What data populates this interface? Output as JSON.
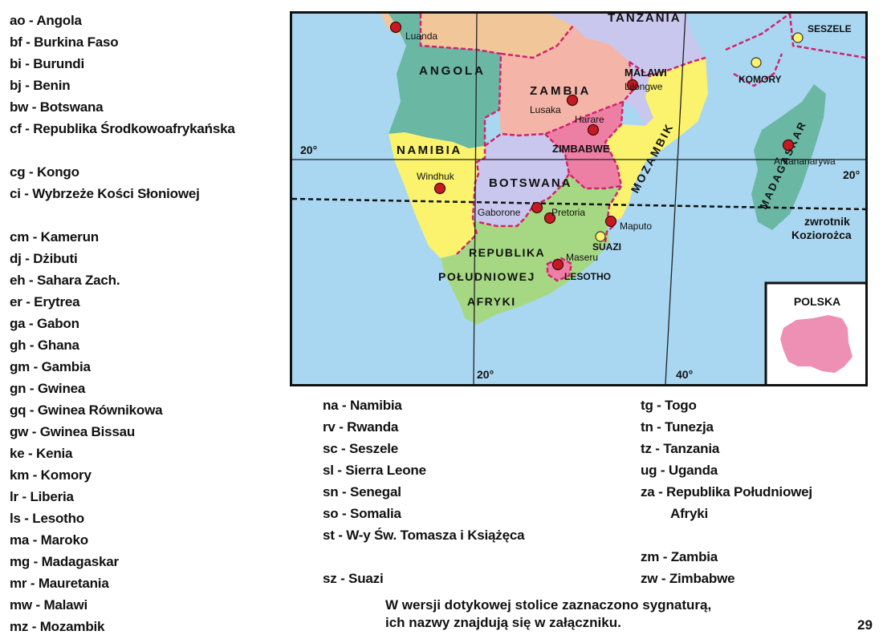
{
  "legend_left": [
    "ao - Angola",
    "bf - Burkina Faso",
    "bi - Burundi",
    "bj - Benin",
    "bw - Botswana",
    "cf - Republika Środkowoafrykańska",
    "",
    "cg - Kongo",
    "ci - Wybrzeże Kości Słoniowej",
    "",
    "cm - Kamerun",
    "dj - Dżibuti",
    "eh - Sahara Zach.",
    "er - Erytrea",
    "ga - Gabon",
    "gh - Ghana",
    "gm - Gambia",
    "gn - Gwinea",
    "gq - Gwinea Równikowa",
    "gw - Gwinea Bissau",
    "ke - Kenia",
    "km - Komory",
    "lr - Liberia",
    "ls - Lesotho",
    "ma - Maroko",
    "mg - Madagaskar",
    "mr - Mauretania",
    "mw - Malawi",
    "mz - Mozambik"
  ],
  "legend_mid": [
    "na - Namibia",
    "rv - Rwanda",
    "sc - Seszele",
    "sl - Sierra Leone",
    "sn - Senegal",
    "so - Somalia",
    "st - W-y Św. Tomasza i Książęca",
    "",
    "sz - Suazi"
  ],
  "legend_right": [
    "tg - Togo",
    "tn - Tunezja",
    "tz - Tanzania",
    "ug - Uganda",
    "za - Republika Południowej",
    "Afryki",
    "",
    "zm - Zambia",
    "zw - Zimbabwe"
  ],
  "note": {
    "line1": "W wersji dotykowej stolice zaznaczono sygnaturą,",
    "line2": "ich nazwy znajdują się w załączniku."
  },
  "page_number": "29",
  "map": {
    "colors": {
      "sea": "#a9d7f1",
      "angola": "#6ab7a4",
      "zambia": "#f4b4a8",
      "tanzania": "#c9c7ee",
      "malawi": "#c9c7ee",
      "mozambik": "#fbf36d",
      "namibia": "#fbf36d",
      "botswana": "#c9c7ee",
      "zimbabwe": "#ee7fa4",
      "rpa": "#a6d884",
      "madagaskar": "#6ab7a4",
      "border": "#d0246e",
      "capital_dot": "#c61a22",
      "small_island_dot": "#fbf36d",
      "poland": "#ee8fb4"
    },
    "country_labels": {
      "tanzania": "TANZANIA",
      "angola": "ANGOLA",
      "zambia": "ZAMBIA",
      "malawi": "MALAWI",
      "namibia": "NAMIBIA",
      "zimbabwe": "ZIMBABWE",
      "botswana": "BOTSWANA",
      "mozambik": "MOZAMBIK",
      "madagaskar": "MADAGASKAR",
      "komory": "KOMORY",
      "seszele": "SESZELE",
      "suazi": "SUAZI",
      "rpa_line1": "REPUBLIKA",
      "rpa_line2": "POŁUDNIOWEJ",
      "rpa_line3": "AFRYKI",
      "lesotho": "LESOTHO"
    },
    "capitals": {
      "luanda": "Luanda",
      "lusaka": "Lusaka",
      "lilongwe": "Lilongwe",
      "harare": "Harare",
      "windhuk": "Windhuk",
      "gaborone": "Gaborone",
      "pretoria": "Pretoria",
      "maputo": "Maputo",
      "maseru": "Maseru",
      "antananarywa": "Antananarywa"
    },
    "graticule": {
      "lat_left": "20°",
      "lat_right": "20°",
      "lon_20": "20°",
      "lon_40": "40°"
    },
    "tropic_line1": "zwrotnik",
    "tropic_line2": "Koziorożca",
    "inset_title": "POLSKA"
  }
}
